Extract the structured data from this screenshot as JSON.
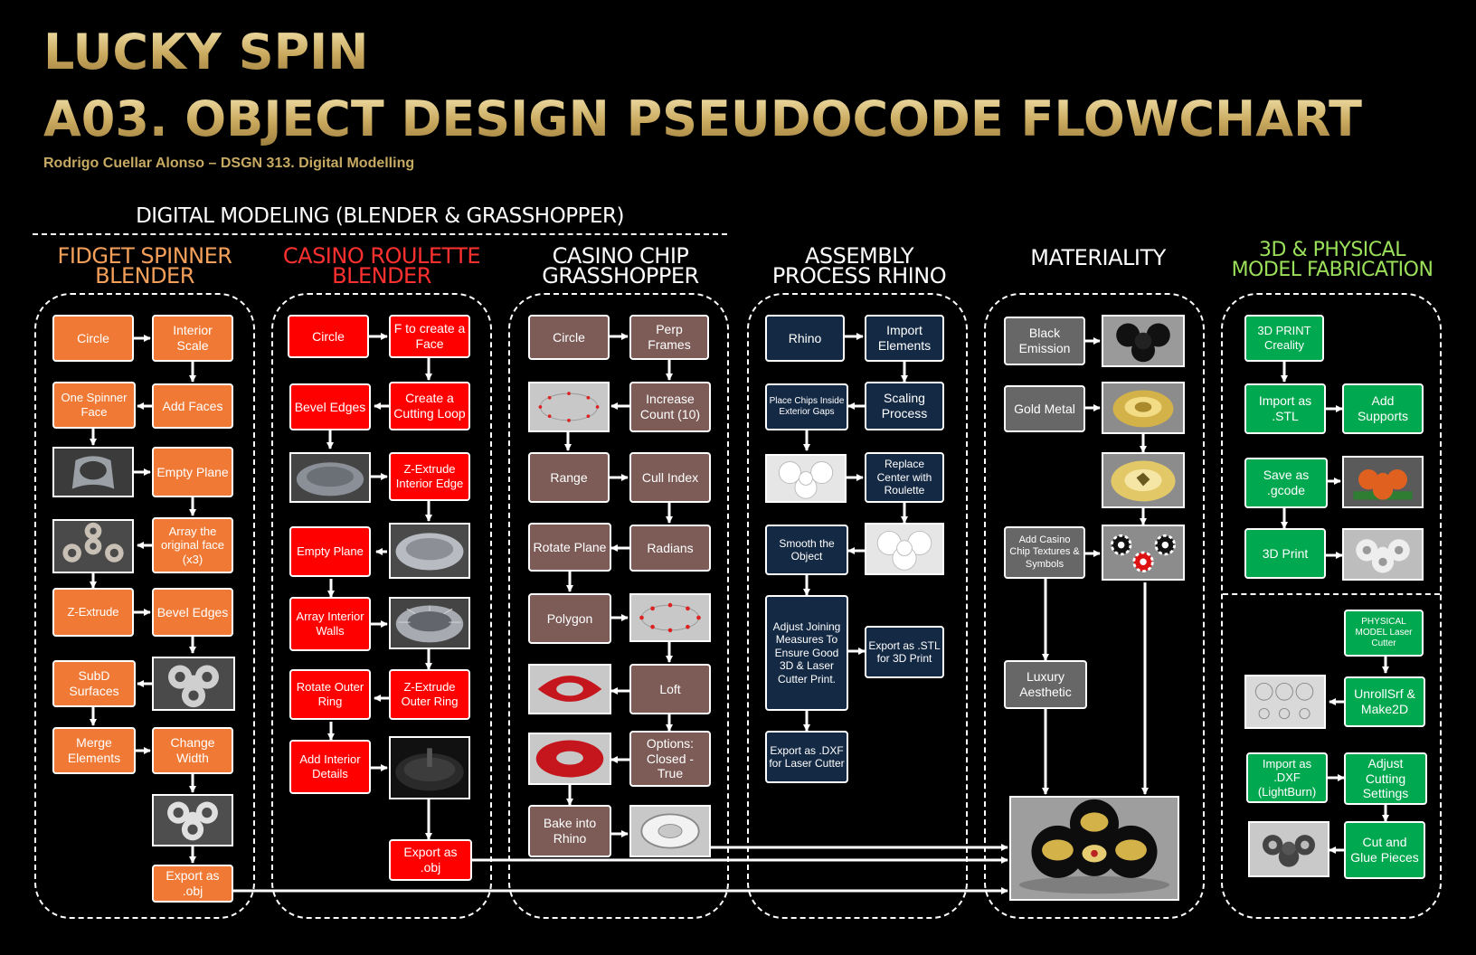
{
  "header": {
    "title": "LUCKY SPIN",
    "subtitle": "A03. OBJECT DESIGN PSEUDOCODE FLOWCHART",
    "credit": "Rodrigo Cuellar Alonso – DSGN 313. Digital Modelling"
  },
  "section_label": "DIGITAL MODELING (BLENDER & GRASSHOPPER)",
  "colors": {
    "fidget": "#f07a35",
    "roulette": "#ff0000",
    "chip": "#7d5c58",
    "assembly": "#142944",
    "materiality": "#676767",
    "fabrication": "#00a84f",
    "gold": "#c7aa62"
  },
  "columns": {
    "fidget": {
      "heading": "FIDGET SPINNER\nBLENDER",
      "nodes": [
        "Circle",
        "Interior Scale",
        "One Spinner Face",
        "Add Faces",
        "Empty Plane",
        "Array the original face (x3)",
        "Z-Extrude",
        "Bevel Edges",
        "SubD Surfaces",
        "Merge Elements",
        "Change Width",
        "Export as .obj"
      ]
    },
    "roulette": {
      "heading": "CASINO ROULETTE\nBLENDER",
      "nodes": [
        "Circle",
        "F to create a Face",
        "Bevel Edges",
        "Create a Cutting Loop",
        "Z-Extrude Interior Edge",
        "Empty Plane",
        "Array Interior Walls",
        "Rotate Outer Ring",
        "Z-Extrude Outer Ring",
        "Add Interior Details",
        "Export as .obj"
      ]
    },
    "chip": {
      "heading": "CASINO CHIP\nGRASSHOPPER",
      "nodes": [
        "Circle",
        "Perp Frames",
        "Increase Count (10)",
        "Range",
        "Cull Index",
        "Rotate Plane",
        "Radians",
        "Polygon",
        "Loft",
        "Options: Closed - True",
        "Bake into Rhino"
      ]
    },
    "assembly": {
      "heading": "ASSEMBLY\nPROCESS RHINO",
      "nodes": [
        "Rhino",
        "Import Elements",
        "Place Chips Inside Exterior Gaps",
        "Scaling Process",
        "Replace Center with Roulette",
        "Smooth the Object",
        "Adjust Joining Measures To Ensure Good 3D & Laser Cutter Print.",
        "Export as .STL for 3D Print",
        "Export as .DXF for Laser Cutter"
      ]
    },
    "materiality": {
      "heading": "MATERIALITY",
      "nodes": [
        "Black Emission",
        "Gold Metal",
        "Add Casino Chip Textures & Symbols",
        "Luxury Aesthetic"
      ]
    },
    "fabrication": {
      "heading": "3D & PHYSICAL\nMODEL FABRICATION",
      "nodes": [
        "3D PRINT Creality",
        "Import as .STL",
        "Add Supports",
        "Save as .gcode",
        "3D Print",
        "PHYSICAL MODEL Laser Cutter",
        "UnrollSrf & Make2D",
        "Import as .DXF (LightBurn)",
        "Adjust Cutting Settings",
        "Cut and Glue Pieces"
      ]
    }
  }
}
